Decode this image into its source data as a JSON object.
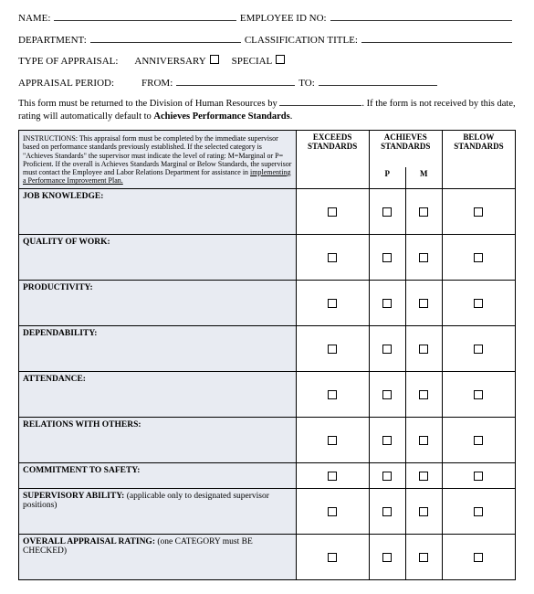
{
  "fields": {
    "name_label": "NAME:",
    "employee_id_label": "EMPLOYEE ID NO:",
    "department_label": "DEPARTMENT:",
    "classification_label": "CLASSIFICATION TITLE:",
    "type_of_appraisal_label": "TYPE OF APPRAISAL:",
    "anniversary_label": "ANNIVERSARY",
    "special_label": "SPECIAL",
    "appraisal_period_label": "APPRAISAL PERIOD:",
    "from_label": "FROM:",
    "to_label": "TO:"
  },
  "notice": {
    "part1": "This form must be returned to the Division of Human Resources by ",
    "part2": ". If the form is not received by this date, rating will automatically default to ",
    "bold": "Achieves Performance Standards",
    "part3": "."
  },
  "table": {
    "instructions_prefix": "INSTRUCTIONS: ",
    "instructions_body": "This appraisal form must be completed by the immediate supervisor based on performance standards previously established. If the selected category is \"Achieves Standards\" the supervisor must indicate the level of rating: M=Marginal or P= Proficient. If the overall is Achieves Standards Marginal or Below Standards, the supervisor must contact the Employee and Labor Relations Department for assistance in ",
    "instructions_underline": "implementing a Performance Improvement Plan.",
    "headers": {
      "exceeds": "EXCEEDS STANDARDS",
      "achieves": "ACHIEVES STANDARDS",
      "p": "P",
      "m": "M",
      "below": "BELOW STANDARDS"
    },
    "rows": [
      {
        "label": "JOB KNOWLEDGE:",
        "note": "",
        "short": false
      },
      {
        "label": "QUALITY OF WORK:",
        "note": "",
        "short": false
      },
      {
        "label": "PRODUCTIVITY:",
        "note": "",
        "short": false
      },
      {
        "label": "DEPENDABILITY:",
        "note": "",
        "short": false
      },
      {
        "label": "ATTENDANCE:",
        "note": "",
        "short": false
      },
      {
        "label": "RELATIONS WITH OTHERS:",
        "note": "",
        "short": false
      },
      {
        "label": "COMMITMENT TO SAFETY:",
        "note": "",
        "short": true
      },
      {
        "label": "SUPERVISORY ABILITY: ",
        "note": "(applicable only to designated supervisor positions)",
        "short": false
      },
      {
        "label": "OVERALL APPRAISAL RATING: ",
        "note": "(one CATEGORY must BE CHECKED)",
        "short": false
      }
    ]
  }
}
